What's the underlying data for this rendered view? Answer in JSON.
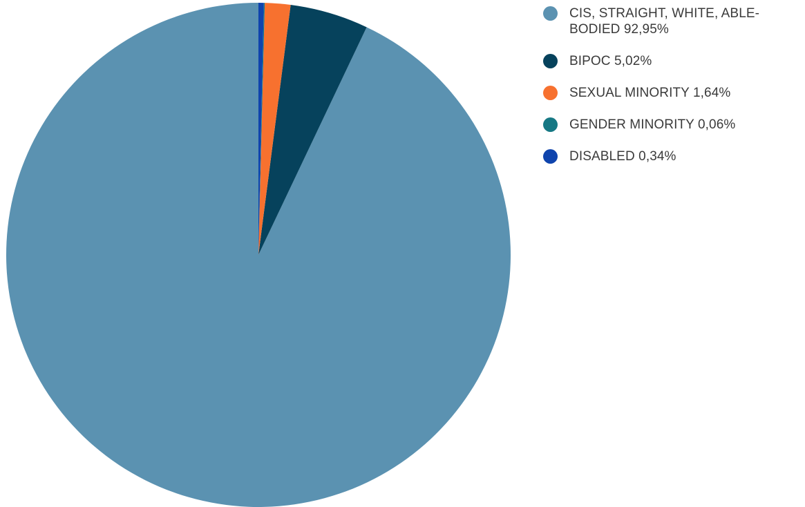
{
  "chart_data": {
    "type": "pie",
    "title": "",
    "slices": [
      {
        "label": "CIS, STRAIGHT, WHITE, ABLE-BODIED",
        "value_text": "92,95%",
        "value": 92.95,
        "color": "#5b92b1"
      },
      {
        "label": "BIPOC",
        "value_text": "5,02%",
        "value": 5.02,
        "color": "#06425c"
      },
      {
        "label": "SEXUAL MINORITY",
        "value_text": "1,64%",
        "value": 1.64,
        "color": "#f7712f"
      },
      {
        "label": "GENDER MINORITY",
        "value_text": "0,06%",
        "value": 0.06,
        "color": "#167884"
      },
      {
        "label": "DISABLED",
        "value_text": "0,34%",
        "value": 0.34,
        "color": "#0f44ad"
      }
    ],
    "start_angle_deg": 0,
    "direction": "counterclockwise",
    "legend_position": "top-right"
  }
}
